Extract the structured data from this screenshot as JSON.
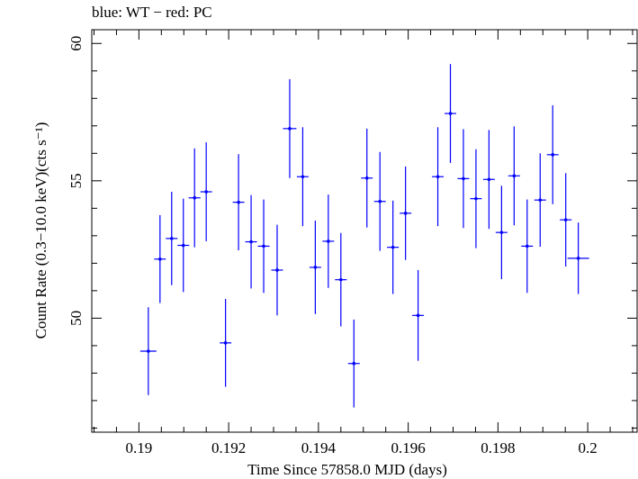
{
  "chart_data": {
    "type": "scatter",
    "title": "blue: WT − red: PC",
    "xlabel": "Time Since 57858.0 MJD (days)",
    "ylabel": "Count Rate (0.3−10.0 keV)(cts s⁻¹)",
    "xlim": [
      0.18895,
      0.2011
    ],
    "ylim": [
      45.85,
      60.5
    ],
    "x_ticks": [
      "0.19",
      "0.192",
      "0.194",
      "0.196",
      "0.198",
      "0.2"
    ],
    "x_tick_values": [
      0.19,
      0.192,
      0.194,
      0.196,
      0.198,
      0.2
    ],
    "y_ticks": [
      "50",
      "55",
      "60"
    ],
    "y_tick_values": [
      50,
      55,
      60
    ],
    "grid": false,
    "colors": {
      "series": "#0000ff",
      "axes": "#000000"
    },
    "series": [
      {
        "x": [
          0.19021,
          0.19047,
          0.19073,
          0.19099,
          0.19124,
          0.1915,
          0.19193,
          0.19222,
          0.1925,
          0.19278,
          0.19308,
          0.19336,
          0.19365,
          0.19393,
          0.19422,
          0.1945,
          0.19479,
          0.19508,
          0.19537,
          0.19566,
          0.19594,
          0.19622,
          0.19666,
          0.19694,
          0.19723,
          0.19751,
          0.1978,
          0.19808,
          0.19836,
          0.19865,
          0.19894,
          0.19922,
          0.19951,
          0.19979
        ],
        "xerr": [
          0.00018,
          0.00013,
          0.00013,
          0.00013,
          0.00013,
          0.00013,
          0.00013,
          0.00013,
          0.00013,
          0.00013,
          0.00013,
          0.00015,
          0.00013,
          0.00013,
          0.00013,
          0.00013,
          0.00013,
          0.00013,
          0.00013,
          0.00013,
          0.00013,
          0.00013,
          0.00013,
          0.00013,
          0.00013,
          0.00013,
          0.00013,
          0.00013,
          0.00013,
          0.00013,
          0.00013,
          0.00013,
          0.00013,
          0.00024
        ],
        "y": [
          48.8,
          52.15,
          52.9,
          52.65,
          54.38,
          54.6,
          49.1,
          54.22,
          52.78,
          52.62,
          51.75,
          56.9,
          55.15,
          51.85,
          52.8,
          51.4,
          48.35,
          55.1,
          54.25,
          52.58,
          53.82,
          50.1,
          55.15,
          57.45,
          55.08,
          54.35,
          55.05,
          53.12,
          55.18,
          52.62,
          54.3,
          55.95,
          53.58,
          52.18
        ],
        "yerr": [
          1.6,
          1.6,
          1.7,
          1.7,
          1.8,
          1.8,
          1.6,
          1.75,
          1.7,
          1.7,
          1.65,
          1.8,
          1.8,
          1.7,
          1.7,
          1.7,
          1.6,
          1.8,
          1.8,
          1.7,
          1.7,
          1.65,
          1.8,
          1.8,
          1.8,
          1.8,
          1.8,
          1.7,
          1.8,
          1.7,
          1.7,
          1.8,
          1.7,
          1.3
        ]
      }
    ]
  }
}
